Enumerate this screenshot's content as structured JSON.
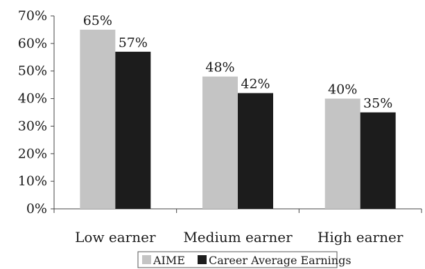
{
  "chart_data": {
    "type": "bar",
    "categories": [
      "Low earner",
      "Medium earner",
      "High earner"
    ],
    "series": [
      {
        "name": "AIME",
        "values": [
          65,
          48,
          40
        ],
        "labels": [
          "65%",
          "48%",
          "40%"
        ],
        "color": "#c4c4c4"
      },
      {
        "name": "Career Average Earnings",
        "values": [
          57,
          42,
          35
        ],
        "labels": [
          "57%",
          "42%",
          "35%"
        ],
        "color": "#1c1c1c"
      }
    ],
    "ylim": [
      0,
      70
    ],
    "yticks": [
      0,
      10,
      20,
      30,
      40,
      50,
      60,
      70
    ],
    "ytick_labels": [
      "0%",
      "10%",
      "20%",
      "30%",
      "40%",
      "50%",
      "60%",
      "70%"
    ],
    "grid": false,
    "legend_position": "bottom-center",
    "title": "",
    "xlabel": "",
    "ylabel": ""
  }
}
